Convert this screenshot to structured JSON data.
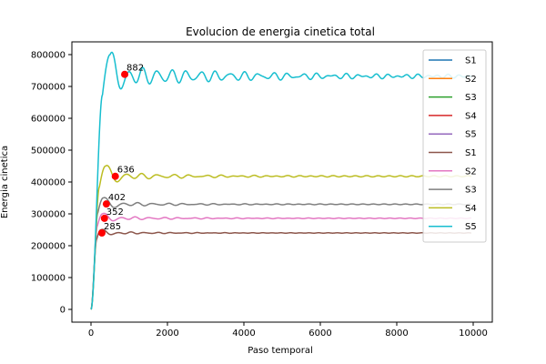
{
  "chart_data": {
    "type": "line",
    "title": "Evolucion de energia cinetica total",
    "xlabel": "Paso temporal",
    "ylabel": "Energia cinetica",
    "xlim": [
      -500,
      10500
    ],
    "ylim": [
      -40000,
      840000
    ],
    "xticks": [
      0,
      2000,
      4000,
      6000,
      8000,
      10000
    ],
    "yticks": [
      0,
      100000,
      200000,
      300000,
      400000,
      500000,
      600000,
      700000,
      800000
    ],
    "grid": false,
    "legend_position": "upper right",
    "legend": [
      {
        "name": "S1",
        "color": "#1f77b4"
      },
      {
        "name": "S2",
        "color": "#ff7f0e"
      },
      {
        "name": "S3",
        "color": "#2ca02c"
      },
      {
        "name": "S4",
        "color": "#d62728"
      },
      {
        "name": "S5",
        "color": "#9467bd"
      },
      {
        "name": "S1",
        "color": "#8c564b"
      },
      {
        "name": "S2",
        "color": "#e377c2"
      },
      {
        "name": "S3",
        "color": "#7f7f7f"
      },
      {
        "name": "S4",
        "color": "#bcbd22"
      },
      {
        "name": "S5",
        "color": "#17becf"
      }
    ],
    "series": [
      {
        "name": "S1",
        "color": "#8c564b",
        "rise_end": 150,
        "peak_x": 260,
        "peak_y": 250000,
        "plateau": 240000,
        "osc_amp": 4000,
        "osc_period": 350,
        "osc_decay": 1500,
        "end_x": 9950
      },
      {
        "name": "S2",
        "color": "#e377c2",
        "rise_end": 170,
        "peak_x": 300,
        "peak_y": 300000,
        "plateau": 286000,
        "osc_amp": 6000,
        "osc_period": 380,
        "osc_decay": 1600,
        "end_x": 9950
      },
      {
        "name": "S3",
        "color": "#7f7f7f",
        "rise_end": 180,
        "peak_x": 320,
        "peak_y": 350000,
        "plateau": 330000,
        "osc_amp": 7000,
        "osc_period": 400,
        "osc_decay": 1700,
        "end_x": 9950
      },
      {
        "name": "S4",
        "color": "#bcbd22",
        "rise_end": 220,
        "peak_x": 380,
        "peak_y": 450000,
        "plateau": 418000,
        "osc_amp": 12000,
        "osc_period": 420,
        "osc_decay": 1800,
        "end_x": 9950
      },
      {
        "name": "S5",
        "color": "#17becf",
        "rise_end": 300,
        "peak_x": 500,
        "peak_y": 800000,
        "plateau": 732000,
        "osc_amp": 28000,
        "osc_period": 380,
        "osc_decay": 3500,
        "end_x": 9950
      }
    ],
    "annotations": [
      {
        "x": 285,
        "y": 240000,
        "label": "285"
      },
      {
        "x": 352,
        "y": 286000,
        "label": "352"
      },
      {
        "x": 402,
        "y": 331000,
        "label": "402"
      },
      {
        "x": 636,
        "y": 418000,
        "label": "636"
      },
      {
        "x": 882,
        "y": 738000,
        "label": "882"
      }
    ],
    "marker_color": "#ff0000"
  }
}
